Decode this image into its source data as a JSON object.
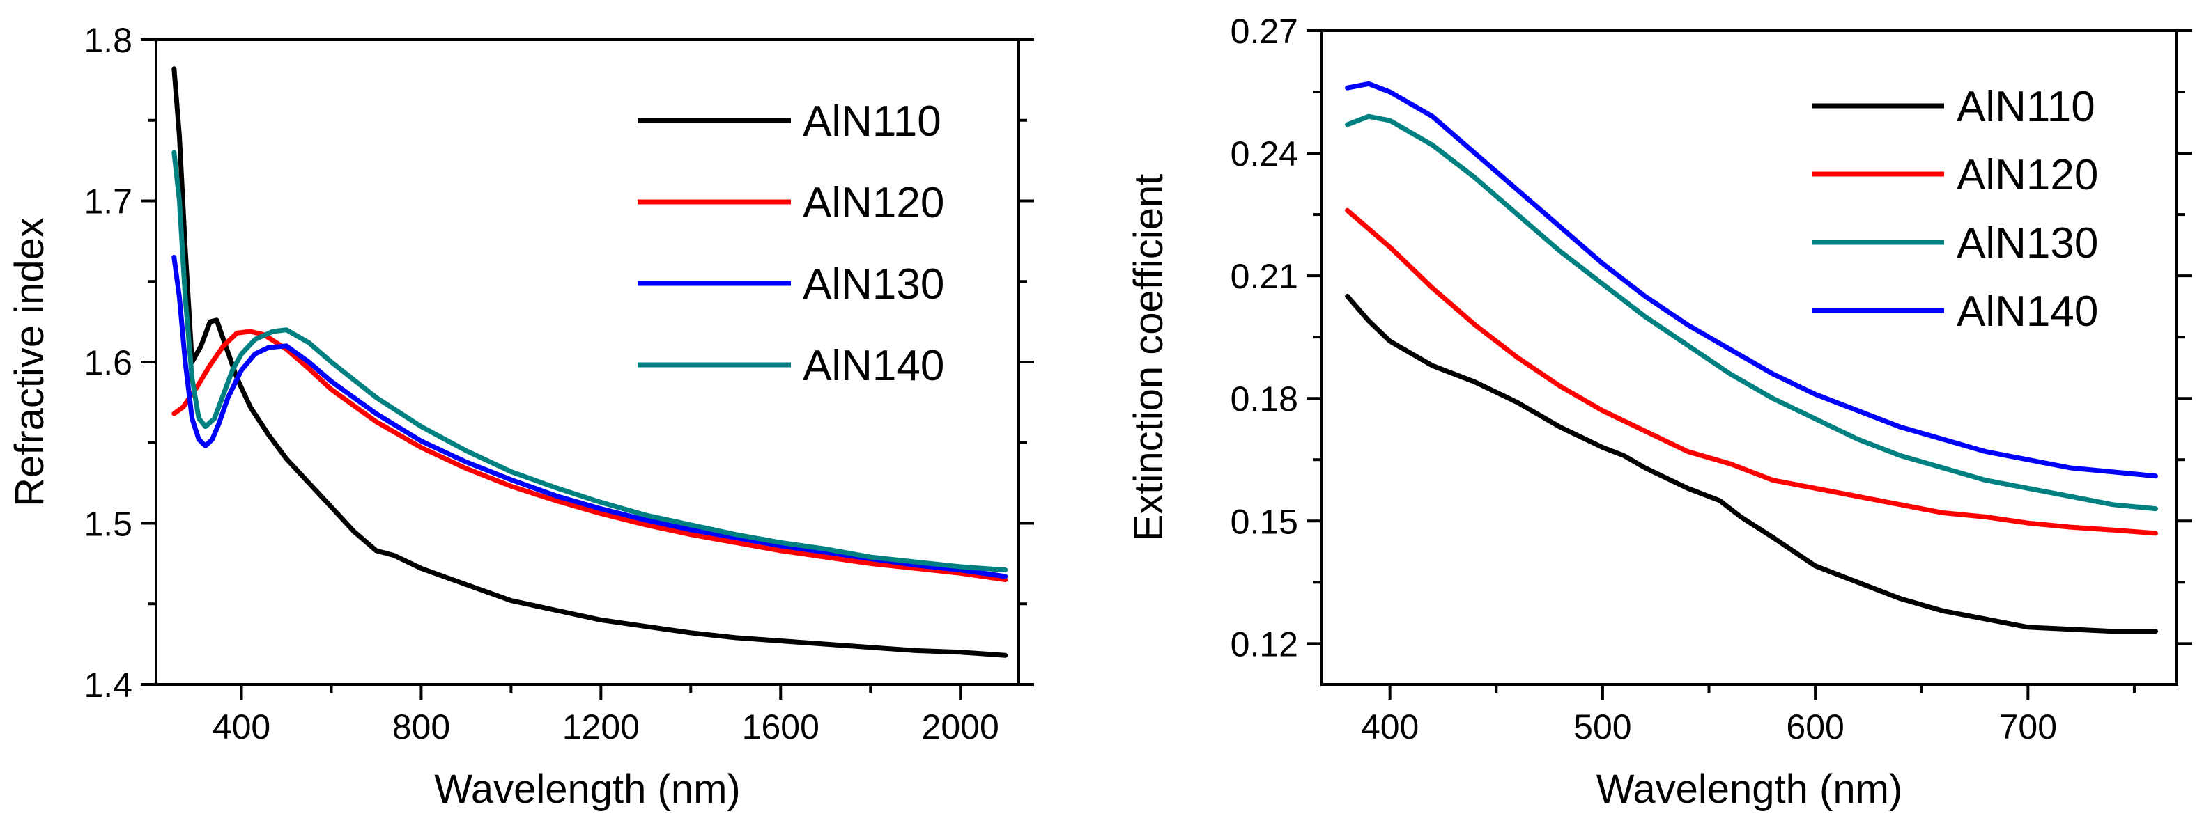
{
  "chart_data": [
    {
      "type": "line",
      "xlabel": "Wavelength (nm)",
      "ylabel": "Refractive index",
      "xlim": [
        210,
        2130
      ],
      "ylim": [
        1.4,
        1.8
      ],
      "xticks": [
        400,
        800,
        1200,
        1600,
        2000
      ],
      "xticks_minor": [
        200,
        600,
        1000,
        1400,
        1800
      ],
      "yticks": [
        1.4,
        1.5,
        1.6,
        1.7,
        1.8
      ],
      "yticks_minor": [
        1.45,
        1.55,
        1.65,
        1.75
      ],
      "ytick_labels": [
        "1.4",
        "1.5",
        "1.6",
        "1.7",
        "1.8"
      ],
      "grid": false,
      "legend": "top-right",
      "series": [
        {
          "name": "AlN110",
          "color": "#000000",
          "x": [
            250,
            262,
            275,
            290,
            310,
            330,
            345,
            365,
            390,
            420,
            460,
            500,
            550,
            600,
            650,
            700,
            740,
            800,
            900,
            1000,
            1100,
            1200,
            1300,
            1400,
            1500,
            1600,
            1700,
            1800,
            1900,
            2000,
            2100
          ],
          "y": [
            1.782,
            1.74,
            1.67,
            1.6,
            1.61,
            1.625,
            1.626,
            1.61,
            1.59,
            1.572,
            1.555,
            1.54,
            1.525,
            1.51,
            1.495,
            1.483,
            1.48,
            1.472,
            1.462,
            1.452,
            1.446,
            1.44,
            1.436,
            1.432,
            1.429,
            1.427,
            1.425,
            1.423,
            1.421,
            1.42,
            1.418
          ]
        },
        {
          "name": "AlN120",
          "color": "#ff0000",
          "x": [
            250,
            270,
            300,
            330,
            360,
            390,
            420,
            450,
            500,
            550,
            600,
            700,
            800,
            900,
            1000,
            1100,
            1200,
            1300,
            1400,
            1500,
            1600,
            1700,
            1800,
            1900,
            2000,
            2100
          ],
          "y": [
            1.568,
            1.572,
            1.584,
            1.598,
            1.61,
            1.618,
            1.619,
            1.617,
            1.608,
            1.596,
            1.583,
            1.563,
            1.547,
            1.534,
            1.523,
            1.514,
            1.506,
            1.499,
            1.493,
            1.488,
            1.483,
            1.479,
            1.475,
            1.472,
            1.469,
            1.465
          ]
        },
        {
          "name": "AlN130",
          "color": "#0000ff",
          "x": [
            250,
            262,
            275,
            290,
            305,
            320,
            335,
            350,
            370,
            400,
            430,
            460,
            500,
            550,
            600,
            700,
            800,
            900,
            1000,
            1100,
            1200,
            1300,
            1400,
            1500,
            1600,
            1700,
            1800,
            1900,
            2000,
            2100
          ],
          "y": [
            1.665,
            1.64,
            1.6,
            1.565,
            1.552,
            1.548,
            1.552,
            1.562,
            1.578,
            1.595,
            1.605,
            1.609,
            1.61,
            1.6,
            1.588,
            1.568,
            1.551,
            1.538,
            1.527,
            1.517,
            1.509,
            1.502,
            1.496,
            1.491,
            1.486,
            1.482,
            1.478,
            1.474,
            1.471,
            1.467
          ]
        },
        {
          "name": "AlN140",
          "color": "#008080",
          "x": [
            250,
            262,
            275,
            290,
            305,
            320,
            340,
            360,
            380,
            400,
            430,
            470,
            500,
            550,
            600,
            700,
            800,
            900,
            1000,
            1100,
            1200,
            1300,
            1400,
            1500,
            1600,
            1700,
            1800,
            1900,
            2000,
            2100
          ],
          "y": [
            1.73,
            1.7,
            1.64,
            1.59,
            1.565,
            1.56,
            1.565,
            1.58,
            1.595,
            1.605,
            1.614,
            1.619,
            1.62,
            1.612,
            1.6,
            1.578,
            1.56,
            1.545,
            1.532,
            1.522,
            1.513,
            1.505,
            1.499,
            1.493,
            1.488,
            1.484,
            1.479,
            1.476,
            1.473,
            1.471
          ]
        }
      ]
    },
    {
      "type": "line",
      "xlabel": "Wavelength (nm)",
      "ylabel": "Extinction coefficient",
      "xlim": [
        368,
        770
      ],
      "ylim": [
        0.11,
        0.27
      ],
      "xticks": [
        400,
        500,
        600,
        700
      ],
      "xticks_minor": [
        450,
        550,
        650,
        750
      ],
      "yticks": [
        0.12,
        0.15,
        0.18,
        0.21,
        0.24,
        0.27
      ],
      "yticks_minor": [
        0.135,
        0.165,
        0.195,
        0.225,
        0.255
      ],
      "ytick_labels": [
        "0.12",
        "0.15",
        "0.18",
        "0.21",
        "0.24",
        "0.27"
      ],
      "grid": false,
      "legend": "top-right",
      "series": [
        {
          "name": "AlN110",
          "color": "#000000",
          "x": [
            380,
            390,
            400,
            410,
            420,
            440,
            460,
            470,
            480,
            500,
            510,
            520,
            540,
            555,
            565,
            580,
            600,
            620,
            640,
            660,
            680,
            700,
            720,
            740,
            760
          ],
          "y": [
            0.205,
            0.199,
            0.194,
            0.191,
            0.188,
            0.184,
            0.179,
            0.176,
            0.173,
            0.168,
            0.166,
            0.163,
            0.158,
            0.155,
            0.151,
            0.146,
            0.139,
            0.135,
            0.131,
            0.128,
            0.126,
            0.124,
            0.1235,
            0.123,
            0.123
          ]
        },
        {
          "name": "AlN120",
          "color": "#ff0000",
          "x": [
            380,
            400,
            420,
            440,
            460,
            480,
            500,
            520,
            540,
            560,
            580,
            600,
            620,
            640,
            660,
            680,
            700,
            720,
            740,
            760
          ],
          "y": [
            0.226,
            0.217,
            0.207,
            0.198,
            0.19,
            0.183,
            0.177,
            0.172,
            0.167,
            0.164,
            0.16,
            0.158,
            0.156,
            0.154,
            0.152,
            0.151,
            0.1495,
            0.1485,
            0.1478,
            0.147
          ]
        },
        {
          "name": "AlN130",
          "color": "#008080",
          "x": [
            380,
            390,
            400,
            420,
            440,
            460,
            480,
            500,
            520,
            540,
            560,
            580,
            600,
            620,
            640,
            660,
            680,
            700,
            720,
            740,
            760
          ],
          "y": [
            0.247,
            0.249,
            0.248,
            0.242,
            0.234,
            0.225,
            0.216,
            0.208,
            0.2,
            0.193,
            0.186,
            0.18,
            0.175,
            0.17,
            0.166,
            0.163,
            0.16,
            0.158,
            0.156,
            0.154,
            0.153
          ]
        },
        {
          "name": "AlN140",
          "color": "#0000ff",
          "x": [
            380,
            390,
            400,
            420,
            440,
            460,
            480,
            500,
            520,
            540,
            560,
            580,
            600,
            620,
            640,
            660,
            680,
            700,
            720,
            740,
            760
          ],
          "y": [
            0.256,
            0.257,
            0.255,
            0.249,
            0.24,
            0.231,
            0.222,
            0.213,
            0.205,
            0.198,
            0.192,
            0.186,
            0.181,
            0.177,
            0.173,
            0.17,
            0.167,
            0.165,
            0.163,
            0.162,
            0.161
          ]
        }
      ]
    }
  ]
}
